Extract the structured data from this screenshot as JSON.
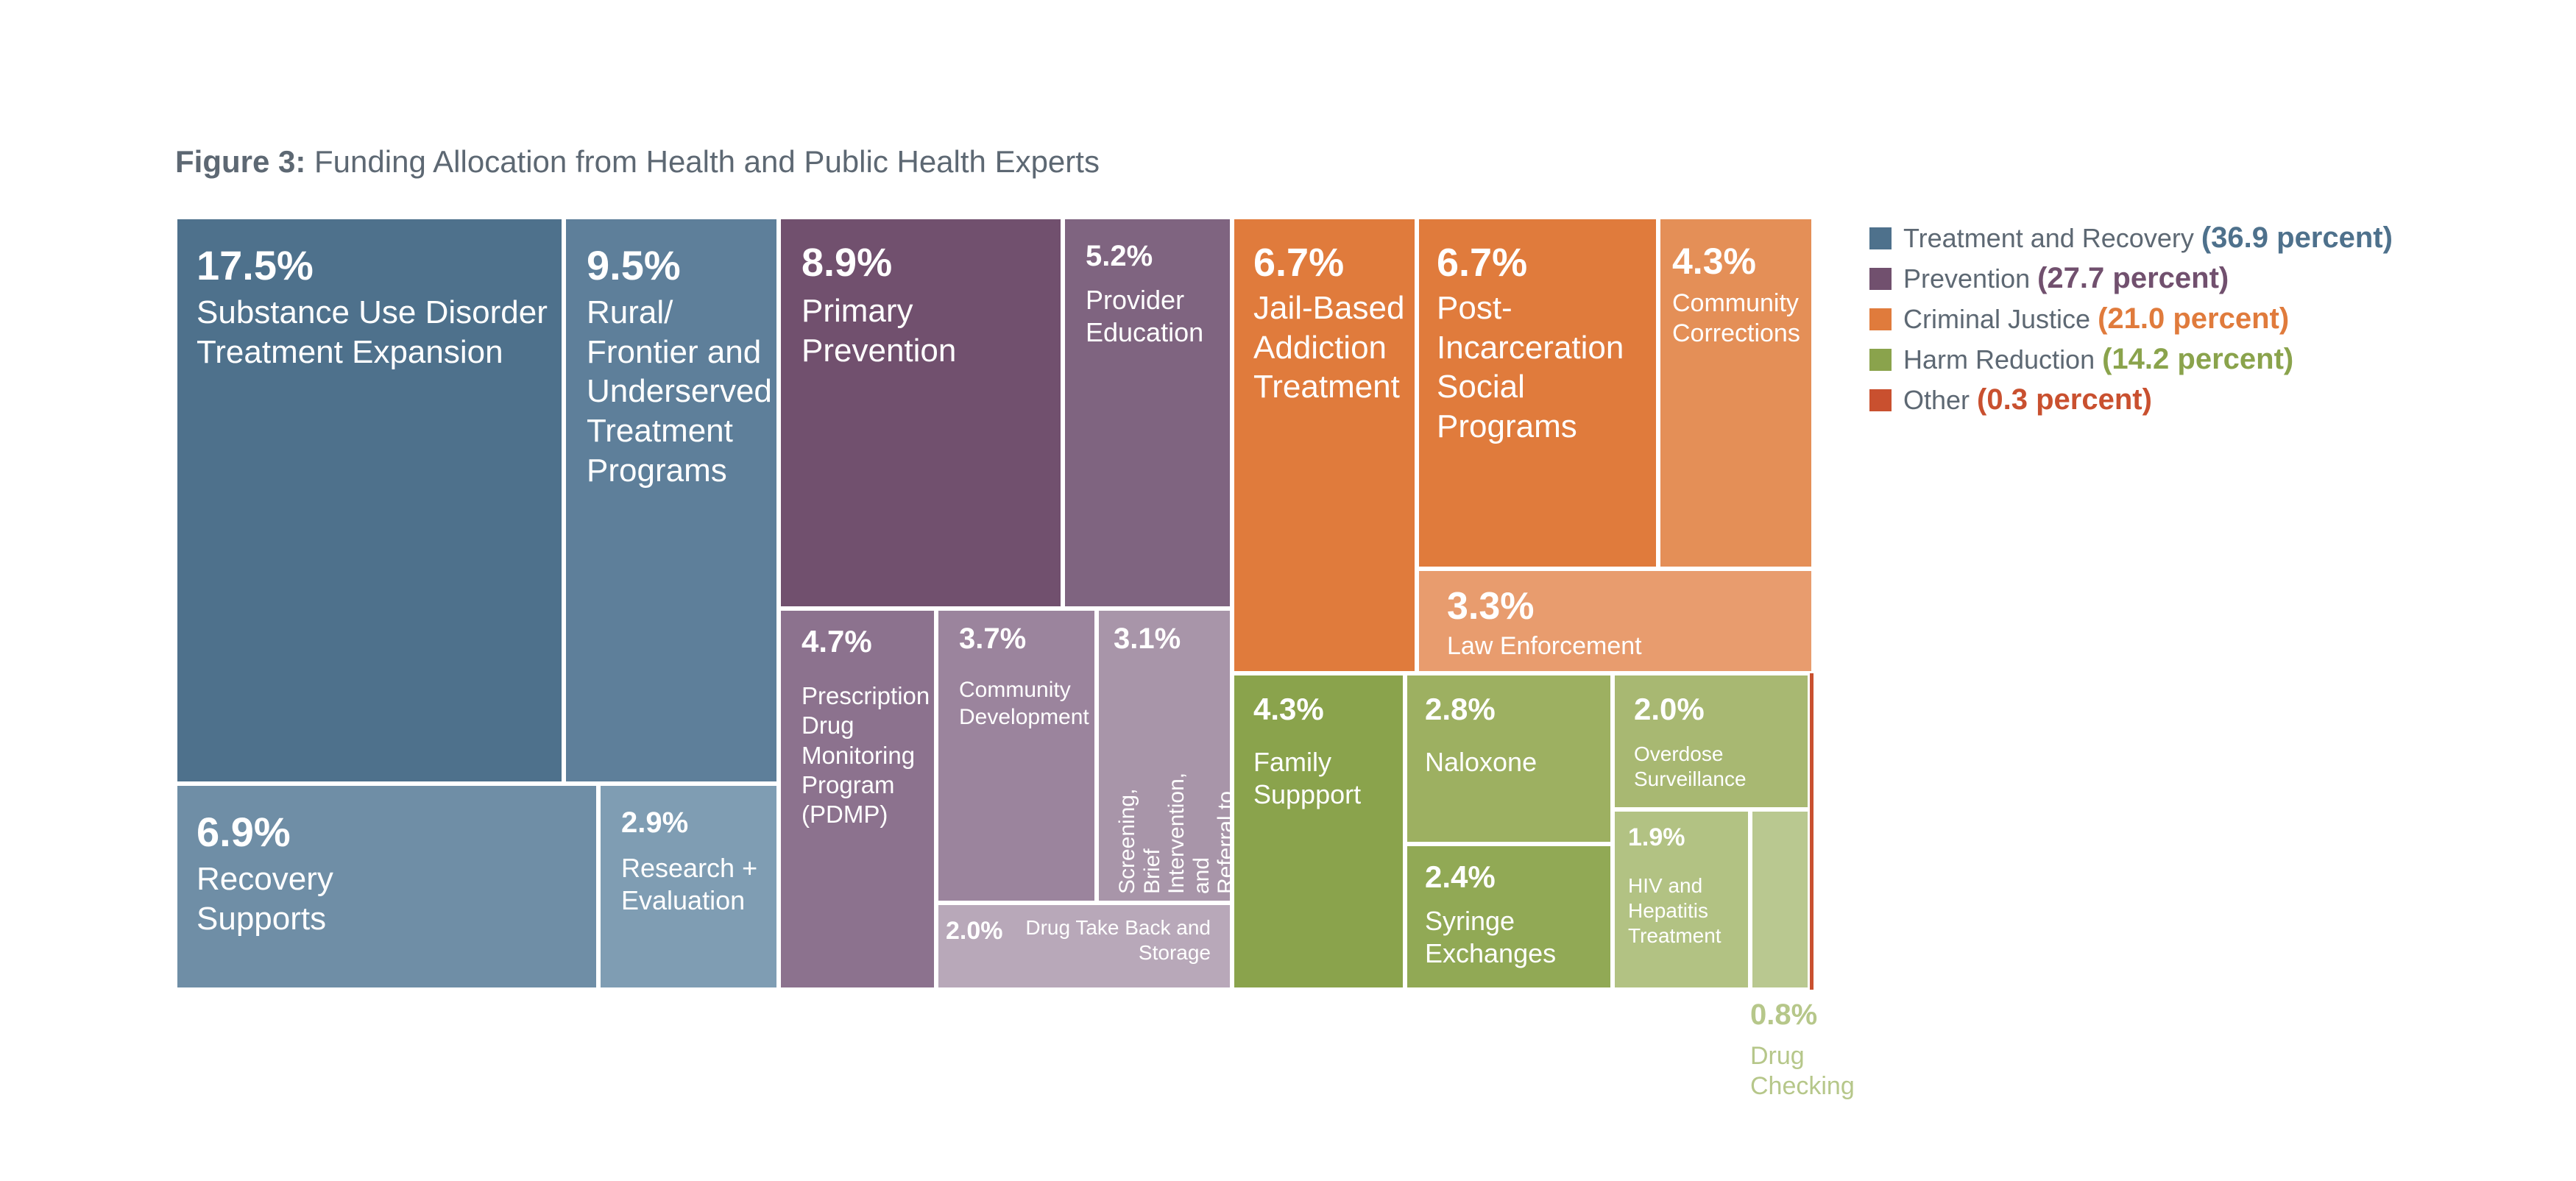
{
  "chart_data": {
    "type": "treemap",
    "title_prefix": "Figure 3:",
    "title": "Funding Allocation from Health and Public Health Experts",
    "legend_position": "right",
    "groups": [
      {
        "key": "treatment",
        "name": "Treatment and Recovery",
        "percent_label": "(36.9 percent)",
        "value": 36.9,
        "color": "#4e718c",
        "label_color": "#4e718c"
      },
      {
        "key": "prevention",
        "name": "Prevention",
        "percent_label": "(27.7 percent)",
        "value": 27.7,
        "color": "#71506e",
        "label_color": "#71506e"
      },
      {
        "key": "criminal",
        "name": "Criminal Justice",
        "percent_label": "(21.0 percent)",
        "value": 21.0,
        "color": "#e07b3c",
        "label_color": "#e07b3c"
      },
      {
        "key": "harm",
        "name": "Harm Reduction",
        "percent_label": "(14.2 percent)",
        "value": 14.2,
        "color": "#8aa34c",
        "label_color": "#8aa34c"
      },
      {
        "key": "other",
        "name": "Other",
        "percent_label": "(0.3 percent)",
        "value": 0.3,
        "color": "#c9502f",
        "label_color": "#c9502f"
      }
    ],
    "items": [
      {
        "group": "treatment",
        "value": 17.5,
        "pct": "17.5%",
        "label": "Substance Use Disorder\nTreatment Expansion",
        "color": "#4e718c"
      },
      {
        "group": "treatment",
        "value": 9.5,
        "pct": "9.5%",
        "label": "Rural/\nFrontier and\nUnderserved\nTreatment\nPrograms",
        "color": "#5e7f9a"
      },
      {
        "group": "treatment",
        "value": 6.9,
        "pct": "6.9%",
        "label": "Recovery\nSupports",
        "color": "#6f8ea6"
      },
      {
        "group": "treatment",
        "value": 2.9,
        "pct": "2.9%",
        "label": "Research +\nEvaluation",
        "color": "#7f9db3"
      },
      {
        "group": "prevention",
        "value": 8.9,
        "pct": "8.9%",
        "label": "Primary\nPrevention",
        "color": "#71506e"
      },
      {
        "group": "prevention",
        "value": 5.2,
        "pct": "5.2%",
        "label": "Provider\nEducation",
        "color": "#7f6480"
      },
      {
        "group": "prevention",
        "value": 4.7,
        "pct": "4.7%",
        "label": "Prescription\nDrug\nMonitoring\nProgram\n(PDMP)",
        "color": "#8c728e"
      },
      {
        "group": "prevention",
        "value": 3.7,
        "pct": "3.7%",
        "label": "Community\nDevelopment",
        "color": "#9b849d"
      },
      {
        "group": "prevention",
        "value": 3.1,
        "pct": "3.1%",
        "label": "Screening, Brief\nIntervention, and\nReferral to Treatment\n(SBIRT)",
        "color": "#a895a9"
      },
      {
        "group": "prevention",
        "value": 2.0,
        "pct": "2.0%",
        "label": "Drug Take Back and\nStorage",
        "color": "#b8a8b9"
      },
      {
        "group": "criminal",
        "value": 6.7,
        "pct": "6.7%",
        "label": "Jail-Based\nAddiction\nTreatment",
        "color": "#e07b3c"
      },
      {
        "group": "criminal",
        "value": 6.7,
        "pct": "6.7%",
        "label": "Post-\nIncarceration\nSocial\nPrograms",
        "color": "#e07b3c"
      },
      {
        "group": "criminal",
        "value": 4.3,
        "pct": "4.3%",
        "label": "Community\nCorrections",
        "color": "#e48f57"
      },
      {
        "group": "criminal",
        "value": 3.3,
        "pct": "3.3%",
        "label": "Law Enforcement",
        "color": "#e89c6e"
      },
      {
        "group": "harm",
        "value": 4.3,
        "pct": "4.3%",
        "label": "Family\nSuppport",
        "color": "#8aa34c"
      },
      {
        "group": "harm",
        "value": 2.8,
        "pct": "2.8%",
        "label": "Naloxone",
        "color": "#9db061"
      },
      {
        "group": "harm",
        "value": 2.4,
        "pct": "2.4%",
        "label": "Syringe\nExchanges",
        "color": "#91a955"
      },
      {
        "group": "harm",
        "value": 2.0,
        "pct": "2.0%",
        "label": "Overdose\nSurveillance",
        "color": "#a8b872"
      },
      {
        "group": "harm",
        "value": 1.9,
        "pct": "1.9%",
        "label": "HIV and\nHepatitis\nTreatment",
        "color": "#b2c283"
      },
      {
        "group": "harm",
        "value": 0.8,
        "pct": "0.8%",
        "label": "Drug\nChecking",
        "color": "#b9c890"
      },
      {
        "group": "other",
        "value": 0.3,
        "pct": "",
        "label": "",
        "color": "#c9502f"
      }
    ]
  }
}
